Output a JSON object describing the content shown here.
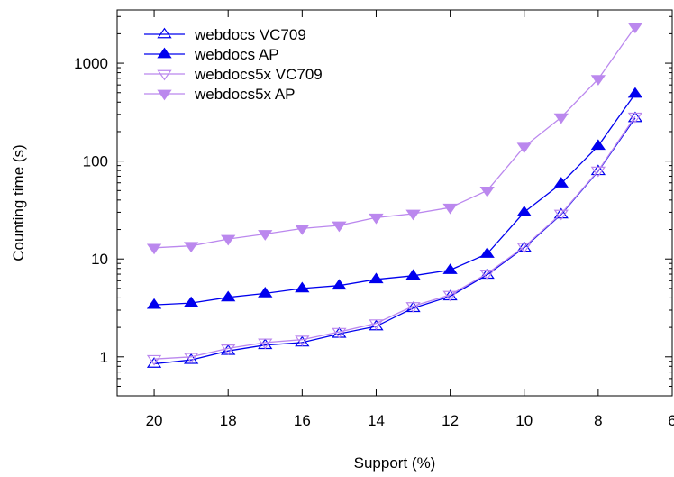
{
  "chart_data": {
    "type": "line",
    "title": "",
    "xlabel": "Support (%)",
    "ylabel": "Counting time (s)",
    "y_scale": "log",
    "x_reversed": true,
    "xlim": [
      21,
      6
    ],
    "ylim": [
      0.4,
      3500
    ],
    "grid": false,
    "legend_position": "top-left",
    "x_ticks": [
      20,
      18,
      16,
      14,
      12,
      10,
      8,
      6
    ],
    "x_tick_labels": [
      "20",
      "18",
      "16",
      "14",
      "12",
      "10",
      "8",
      "6"
    ],
    "y_ticks": [
      1,
      10,
      100,
      1000
    ],
    "y_tick_labels": [
      "1",
      "10",
      "100",
      "1000"
    ],
    "x": [
      20,
      19,
      18,
      17,
      16,
      15,
      14,
      13,
      12,
      11,
      10,
      9,
      8,
      7
    ],
    "series": [
      {
        "name": "webdocs VC709",
        "color": "#0000ee",
        "marker": "triangle-up-open",
        "values": [
          0.85,
          0.93,
          1.15,
          1.32,
          1.4,
          1.72,
          2.05,
          3.15,
          4.15,
          6.9,
          13,
          28.5,
          79,
          275
        ]
      },
      {
        "name": "webdocs AP",
        "color": "#0000ee",
        "marker": "triangle-up-filled",
        "values": [
          3.4,
          3.55,
          4.05,
          4.45,
          5.0,
          5.35,
          6.2,
          6.75,
          7.7,
          11.3,
          30,
          59,
          143,
          487
        ]
      },
      {
        "name": "webdocs5x VC709",
        "color": "#bb88ee",
        "marker": "triangle-down-open",
        "values": [
          0.95,
          1.0,
          1.22,
          1.4,
          1.5,
          1.8,
          2.2,
          3.3,
          4.3,
          7.1,
          13.3,
          29,
          80,
          285
        ]
      },
      {
        "name": "webdocs5x AP",
        "color": "#bb88ee",
        "marker": "triangle-down-filled",
        "values": [
          13,
          13.6,
          16,
          18,
          20.5,
          22,
          26.5,
          29,
          33.5,
          50,
          140,
          280,
          690,
          2350
        ]
      }
    ]
  }
}
